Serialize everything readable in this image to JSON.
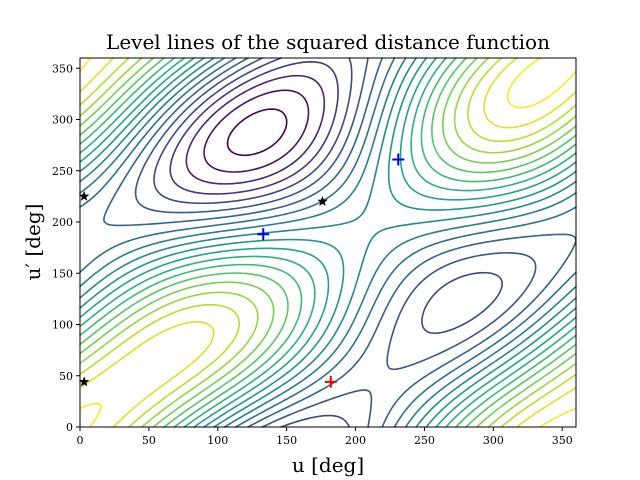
{
  "chart_data": {
    "type": "contour",
    "title": "Level lines of the squared distance function",
    "xlabel": "u [deg]",
    "ylabel": "u′ [deg]",
    "xlim": [
      0,
      360
    ],
    "ylim": [
      0,
      360
    ],
    "xticks": [
      0,
      50,
      100,
      150,
      200,
      250,
      300,
      350
    ],
    "yticks": [
      0,
      50,
      100,
      150,
      200,
      250,
      300,
      350
    ],
    "grid": false,
    "colormap": "viridis",
    "level_count": 20,
    "markers": [
      {
        "kind": "plus",
        "color": "#ff0000",
        "x": 182,
        "y": 44
      },
      {
        "kind": "plus",
        "color": "#0000ff",
        "x": 133,
        "y": 188
      },
      {
        "kind": "plus",
        "color": "#0000ff",
        "x": 231,
        "y": 261
      },
      {
        "kind": "star",
        "color": "#000000",
        "x": 176,
        "y": 220
      },
      {
        "kind": "star",
        "color": "#000000",
        "x": 3,
        "y": 225
      },
      {
        "kind": "star",
        "color": "#000000",
        "x": 3,
        "y": 44
      }
    ]
  }
}
